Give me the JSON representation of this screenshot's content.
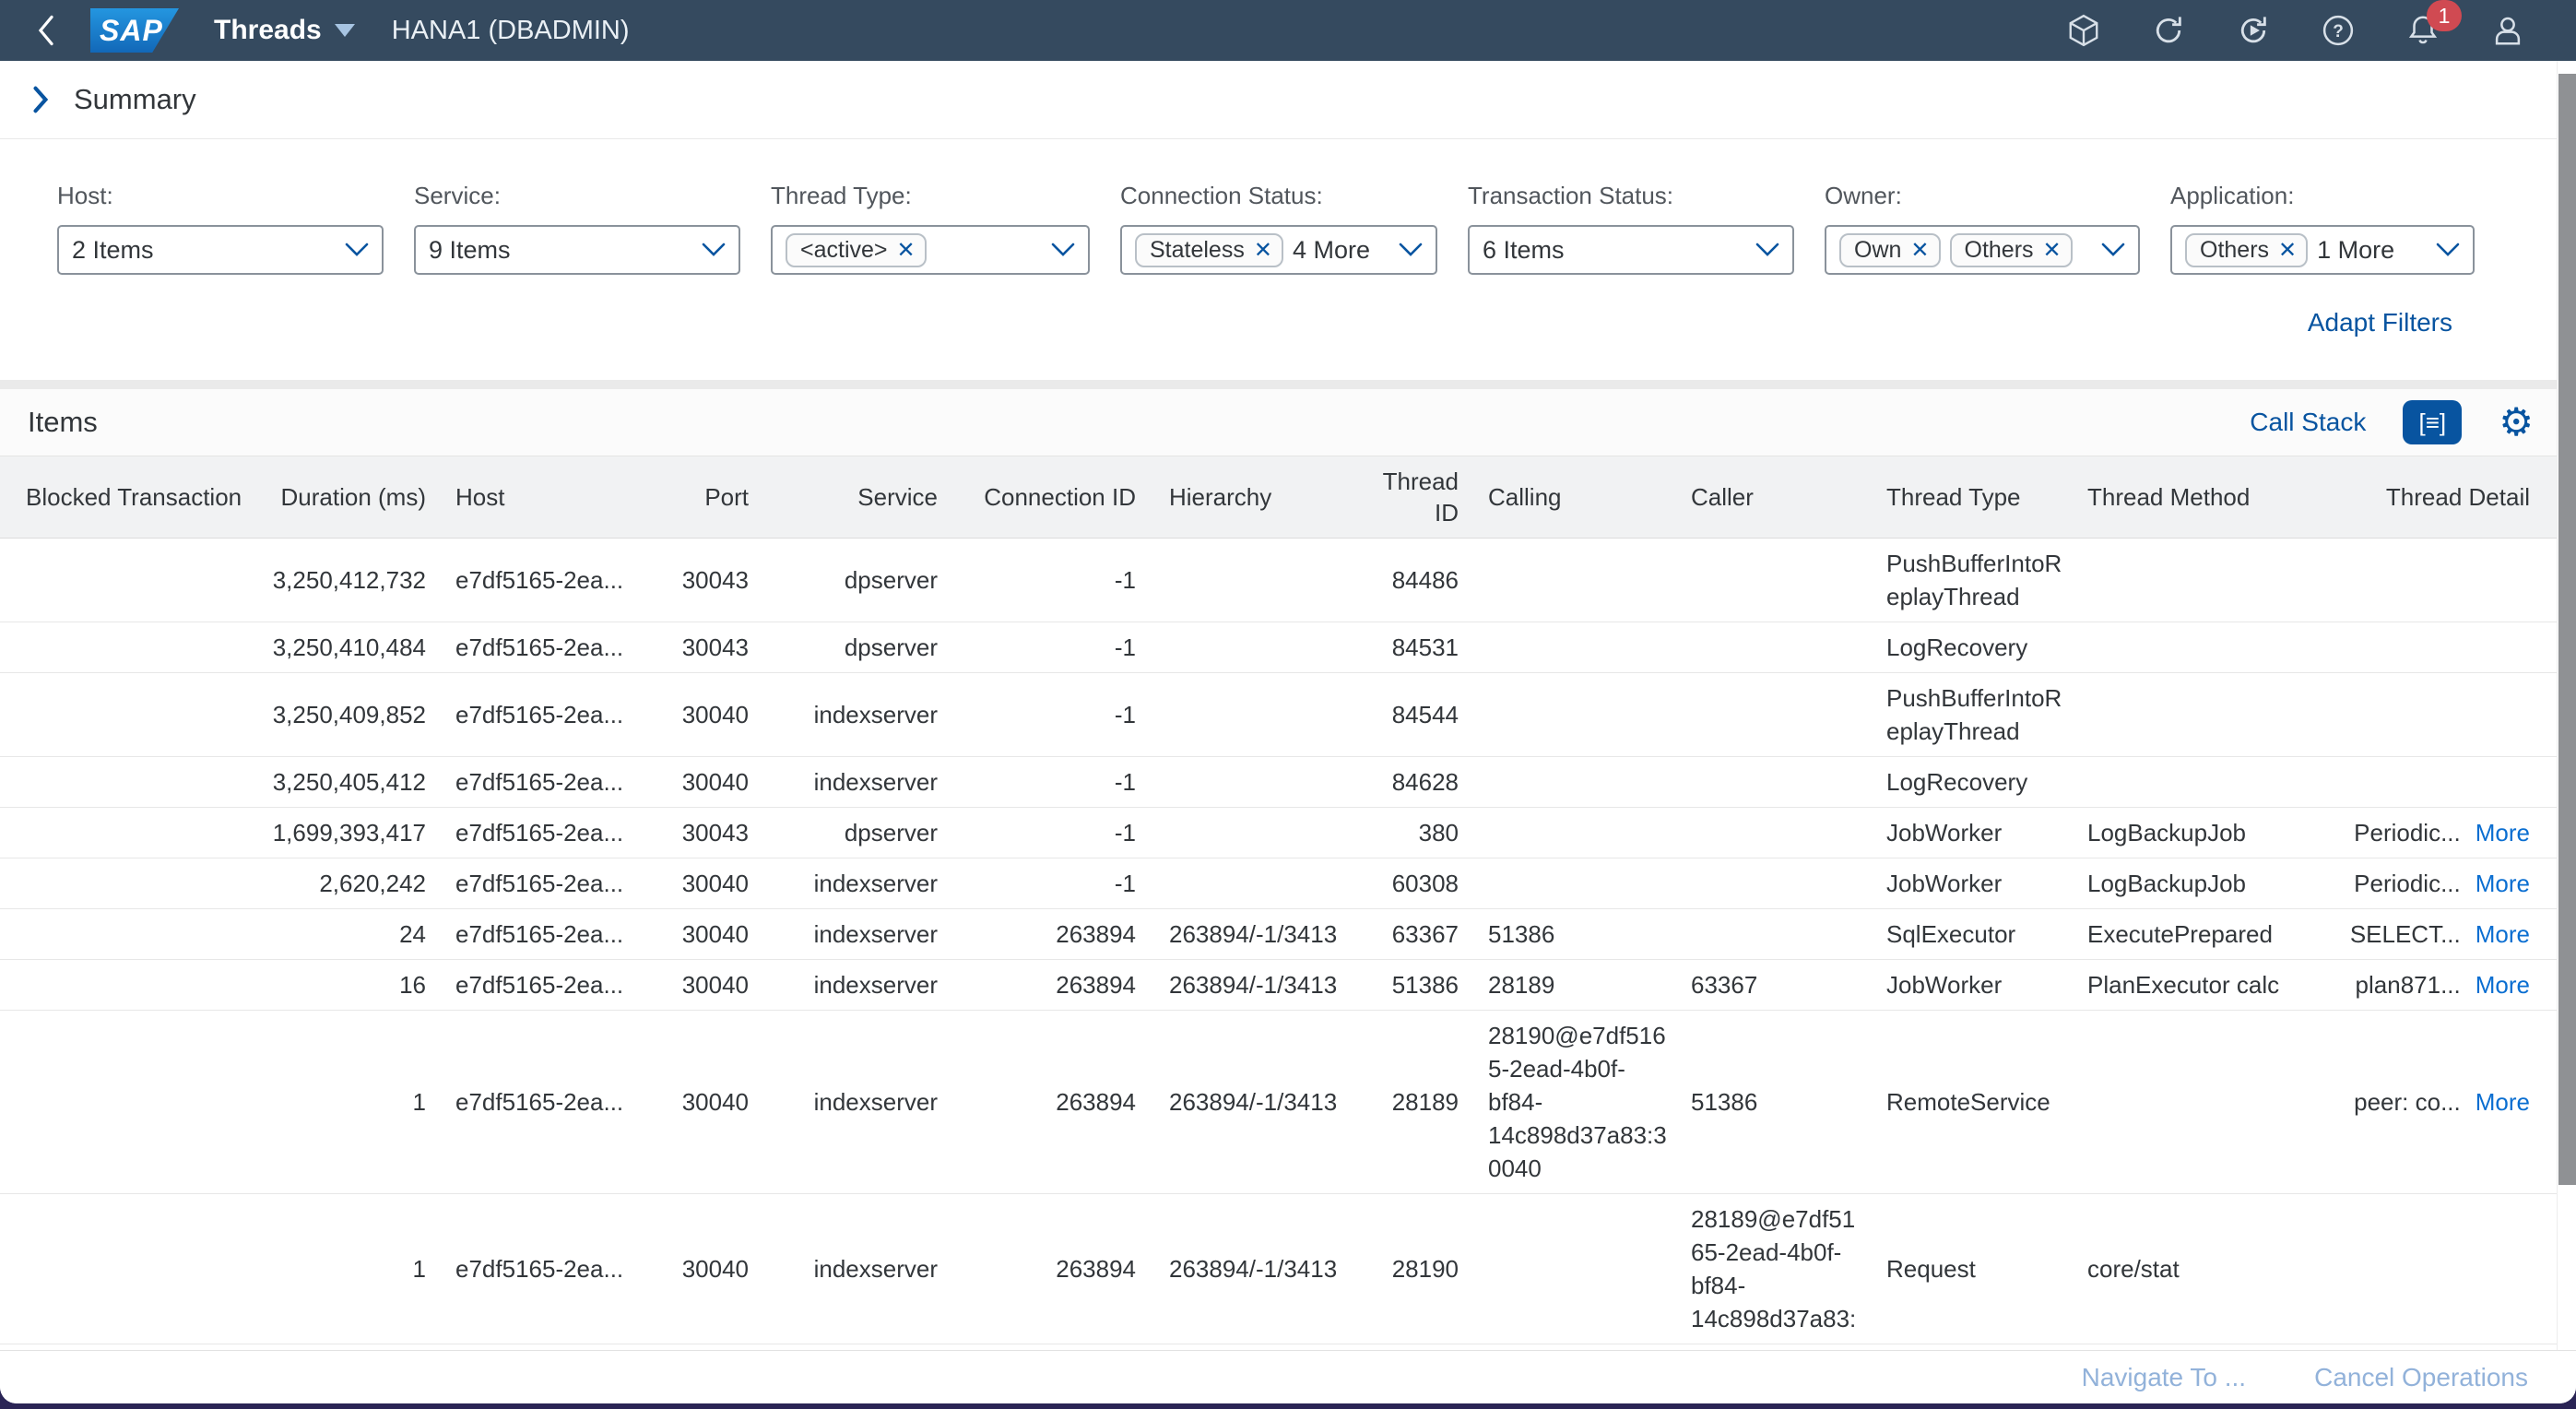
{
  "shell": {
    "product": "SAP",
    "title": "Threads",
    "system": "HANA1 (DBADMIN)",
    "notification_count": "1",
    "icons": [
      "back",
      "product-switcher",
      "refresh",
      "auto-refresh",
      "help",
      "notifications",
      "profile"
    ]
  },
  "summary": {
    "title": "Summary",
    "adapt_filters_label": "Adapt Filters"
  },
  "filters": [
    {
      "label": "Host:",
      "text": "2 Items"
    },
    {
      "label": "Service:",
      "text": "9 Items"
    },
    {
      "label": "Thread Type:",
      "tokens": [
        "<active>"
      ]
    },
    {
      "label": "Connection Status:",
      "tokens": [
        "Stateless"
      ],
      "suffix": "4 More"
    },
    {
      "label": "Transaction Status:",
      "text": "6 Items"
    },
    {
      "label": "Owner:",
      "tokens": [
        "Own",
        "Others"
      ]
    },
    {
      "label": "Application:",
      "tokens": [
        "Others"
      ],
      "suffix": "1 More"
    }
  ],
  "items": {
    "title": "Items",
    "call_stack_label": "Call Stack",
    "icons": [
      "call-stack-list",
      "settings-gear"
    ]
  },
  "table": {
    "columns": [
      "Blocked Transaction",
      "Duration (ms)",
      "Host",
      "Port",
      "Service",
      "Connection ID",
      "Hierarchy",
      "Thread ID",
      "Calling",
      "Caller",
      "Thread Type",
      "Thread Method",
      "Thread Detail"
    ],
    "more_label": "More",
    "rows": [
      {
        "blocked": "",
        "duration": "3,250,412,732",
        "host": "e7df5165-2ea...",
        "port": "30043",
        "service": "dpserver",
        "conn": "-1",
        "hier": "",
        "tid": "84486",
        "calling": "",
        "caller": "",
        "type": "PushBufferIntoReplayThread",
        "method": "",
        "detail": "",
        "more": false
      },
      {
        "blocked": "",
        "duration": "3,250,410,484",
        "host": "e7df5165-2ea...",
        "port": "30043",
        "service": "dpserver",
        "conn": "-1",
        "hier": "",
        "tid": "84531",
        "calling": "",
        "caller": "",
        "type": "LogRecovery",
        "method": "",
        "detail": "",
        "more": false
      },
      {
        "blocked": "",
        "duration": "3,250,409,852",
        "host": "e7df5165-2ea...",
        "port": "30040",
        "service": "indexserver",
        "conn": "-1",
        "hier": "",
        "tid": "84544",
        "calling": "",
        "caller": "",
        "type": "PushBufferIntoReplayThread",
        "method": "",
        "detail": "",
        "more": false
      },
      {
        "blocked": "",
        "duration": "3,250,405,412",
        "host": "e7df5165-2ea...",
        "port": "30040",
        "service": "indexserver",
        "conn": "-1",
        "hier": "",
        "tid": "84628",
        "calling": "",
        "caller": "",
        "type": "LogRecovery",
        "method": "",
        "detail": "",
        "more": false
      },
      {
        "blocked": "",
        "duration": "1,699,393,417",
        "host": "e7df5165-2ea...",
        "port": "30043",
        "service": "dpserver",
        "conn": "-1",
        "hier": "",
        "tid": "380",
        "calling": "",
        "caller": "",
        "type": "JobWorker",
        "method": "LogBackupJob",
        "detail": "Periodic...",
        "more": true
      },
      {
        "blocked": "",
        "duration": "2,620,242",
        "host": "e7df5165-2ea...",
        "port": "30040",
        "service": "indexserver",
        "conn": "-1",
        "hier": "",
        "tid": "60308",
        "calling": "",
        "caller": "",
        "type": "JobWorker",
        "method": "LogBackupJob",
        "detail": "Periodic...",
        "more": true
      },
      {
        "blocked": "",
        "duration": "24",
        "host": "e7df5165-2ea...",
        "port": "30040",
        "service": "indexserver",
        "conn": "263894",
        "hier": "263894/-1/3413",
        "tid": "63367",
        "calling": "51386",
        "caller": "",
        "type": "SqlExecutor",
        "method": "ExecutePrepared",
        "detail": "SELECT...",
        "more": true
      },
      {
        "blocked": "",
        "duration": "16",
        "host": "e7df5165-2ea...",
        "port": "30040",
        "service": "indexserver",
        "conn": "263894",
        "hier": "263894/-1/3413",
        "tid": "51386",
        "calling": "28189",
        "caller": "63367",
        "type": "JobWorker",
        "method": "PlanExecutor calc",
        "detail": "plan871...",
        "more": true
      },
      {
        "blocked": "",
        "duration": "1",
        "host": "e7df5165-2ea...",
        "port": "30040",
        "service": "indexserver",
        "conn": "263894",
        "hier": "263894/-1/3413",
        "tid": "28189",
        "calling": "28190@e7df5165-2ead-4b0f-bf84-14c898d37a83:30040",
        "caller": "51386",
        "type": "RemoteService",
        "method": "",
        "detail": "peer: co...",
        "more": true
      },
      {
        "blocked": "",
        "duration": "1",
        "host": "e7df5165-2ea...",
        "port": "30040",
        "service": "indexserver",
        "conn": "263894",
        "hier": "263894/-1/3413",
        "tid": "28190",
        "calling": "",
        "caller": "28189@e7df5165-2ead-4b0f-bf84-14c898d37a83:",
        "type": "Request",
        "method": "core/stat",
        "detail": "",
        "more": false
      }
    ]
  },
  "footer": {
    "navigate_label": "Navigate To ...",
    "cancel_label": "Cancel Operations"
  },
  "colors": {
    "shell_background": "#354a5f",
    "accent_link": "#0854a0",
    "more_link": "#0a6ed1",
    "notification_badge": "#d04a52",
    "disabled_footer_link": "#92b2da"
  }
}
